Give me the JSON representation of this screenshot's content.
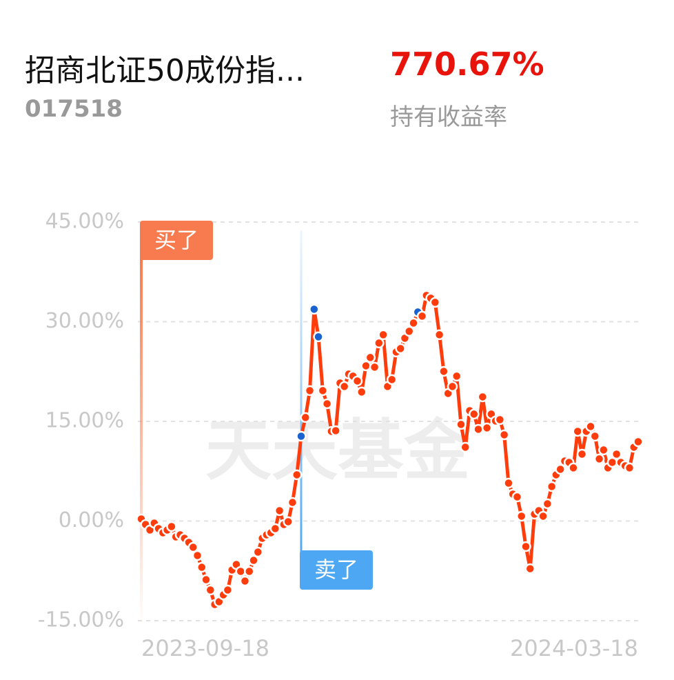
{
  "fund": {
    "name": "招商北证50成份指...",
    "code": "017518",
    "return": "770.67%",
    "return_label": "持有收益率"
  },
  "chart_data": {
    "type": "line",
    "watermark": "天天基金",
    "color": "#ff3c0c",
    "categories": [
      "2023-09-18",
      null,
      null,
      null,
      null,
      null,
      null,
      null,
      null,
      null,
      null,
      null,
      null,
      null,
      null,
      null,
      null,
      null,
      null,
      null,
      null,
      null,
      null,
      null,
      null,
      null,
      null,
      null,
      null,
      null,
      null,
      null,
      null,
      null,
      null,
      null,
      null,
      null,
      null,
      null,
      null,
      null,
      null,
      null,
      null,
      null,
      null,
      null,
      null,
      null,
      null,
      null,
      null,
      null,
      null,
      null,
      null,
      null,
      null,
      null,
      null,
      null,
      null,
      null,
      null,
      null,
      null,
      null,
      null,
      null,
      null,
      null,
      null,
      null,
      null,
      null,
      null,
      null,
      null,
      null,
      null,
      null,
      null,
      null,
      null,
      null,
      null,
      null,
      null,
      null,
      null,
      null,
      null,
      null,
      null,
      null,
      null,
      null,
      null,
      null,
      null,
      null,
      null,
      null,
      null,
      null,
      null,
      null,
      null,
      null,
      null,
      null,
      null,
      null,
      null,
      "2024-03-18"
    ],
    "values": [
      0.31,
      -0.52,
      -1.35,
      -0.31,
      -1.14,
      -1.77,
      -1.35,
      -0.83,
      -2.39,
      -2.08,
      -2.6,
      -3.22,
      -3.95,
      -5.19,
      -6.96,
      -8.83,
      -10.38,
      -12.56,
      -12.15,
      -11.11,
      -10.38,
      -7.37,
      -6.54,
      -7.58,
      -9.03,
      -7.58,
      -5.92,
      -4.67,
      -2.6,
      -2.08,
      -1.77,
      -1.14,
      1.56,
      -0.52,
      -0.1,
      2.8,
      6.96,
      12.77,
      15.58,
      19.63,
      31.88,
      27.73,
      19.63,
      17.65,
      13.5,
      13.6,
      20.77,
      20.25,
      22.12,
      21.81,
      21.08,
      19.42,
      23.36,
      24.61,
      23.16,
      26.79,
      28.04,
      20.25,
      21.29,
      25.44,
      25.96,
      27.52,
      28.56,
      29.8,
      31.46,
      30.84,
      33.96,
      33.54,
      32.92,
      28.04,
      22.53,
      19.21,
      20.25,
      21.81,
      14.54,
      11.11,
      16.61,
      16.1,
      13.81,
      18.69,
      14.02,
      16.1,
      15.06,
      15.26,
      12.98,
      5.71,
      4.05,
      3.63,
      0.73,
      -3.84,
      -7.17,
      1.04,
      1.56,
      0.73,
      2.6,
      5.19,
      6.96,
      7.79,
      9.03,
      8.83,
      8.0,
      13.5,
      10.07,
      13.5,
      14.23,
      12.77,
      9.35,
      10.7,
      8.0,
      8.83,
      10.07,
      8.83,
      8.31,
      8.0,
      11.11,
      11.94
    ],
    "highlight_indices": [
      37,
      40,
      41,
      64
    ],
    "highlight_color": "#1a62d0",
    "annotations": [
      {
        "text": "买了",
        "index": 0,
        "color": "#f77b4e"
      },
      {
        "text": "卖了",
        "index": 37,
        "color": "#4da7f2"
      }
    ],
    "ylim": [
      -15,
      45
    ],
    "yticks": [
      {
        "value": -15,
        "label": "-15.00%"
      },
      {
        "value": 0,
        "label": "0.00%"
      },
      {
        "value": 15,
        "label": "15.00%"
      },
      {
        "value": 30,
        "label": "30.00%"
      },
      {
        "value": 45,
        "label": "45.00%"
      }
    ],
    "grid": true
  }
}
